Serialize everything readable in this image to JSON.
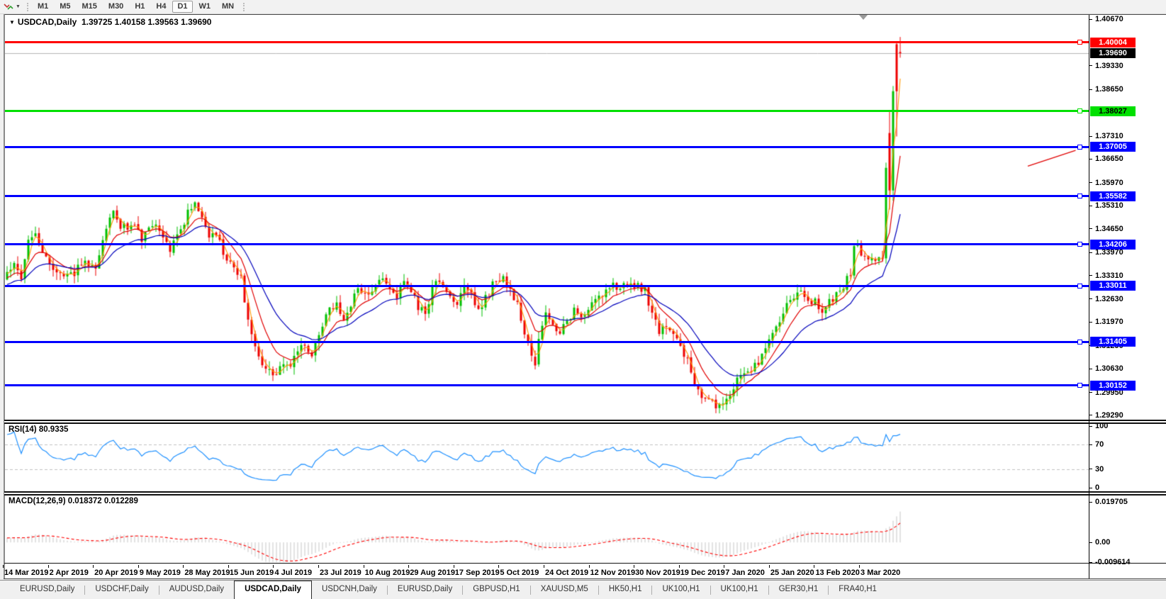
{
  "toolbar": {
    "timeframes": [
      "M1",
      "M5",
      "M15",
      "M30",
      "H1",
      "H4",
      "D1",
      "W1",
      "MN"
    ],
    "active_timeframe": "D1"
  },
  "chart": {
    "symbol_label": "USDCAD,Daily",
    "title_ohlc": "1.39725 1.40158 1.39563 1.39690",
    "price_axis_ticks": [
      "1.40670",
      "1.39330",
      "1.38650",
      "1.37310",
      "1.36650",
      "1.35970",
      "1.35310",
      "1.34650",
      "1.33970",
      "1.33310",
      "1.32630",
      "1.31970",
      "1.31290",
      "1.30630",
      "1.29950",
      "1.29290"
    ],
    "levels": [
      {
        "price_label": "1.40004",
        "price": 1.40004,
        "color": "#FF0000",
        "label_text_color": "#FFFFFF",
        "thickness": 3
      },
      {
        "price_label": "1.38027",
        "price": 1.38027,
        "color": "#00E000",
        "label_text_color": "#000000",
        "thickness": 3
      },
      {
        "price_label": "1.37005",
        "price": 1.37005,
        "color": "#0000FF",
        "label_text_color": "#FFFFFF",
        "thickness": 3
      },
      {
        "price_label": "1.35582",
        "price": 1.35582,
        "color": "#0000FF",
        "label_text_color": "#FFFFFF",
        "thickness": 3
      },
      {
        "price_label": "1.34206",
        "price": 1.34206,
        "color": "#0000FF",
        "label_text_color": "#FFFFFF",
        "thickness": 3
      },
      {
        "price_label": "1.33011",
        "price": 1.33011,
        "color": "#0000FF",
        "label_text_color": "#FFFFFF",
        "thickness": 3
      },
      {
        "price_label": "1.31405",
        "price": 1.31405,
        "color": "#0000FF",
        "label_text_color": "#FFFFFF",
        "thickness": 3
      },
      {
        "price_label": "1.30152",
        "price": 1.30152,
        "color": "#0000FF",
        "label_text_color": "#FFFFFF",
        "thickness": 3
      }
    ],
    "current_price": {
      "label": "1.39690",
      "price": 1.3969,
      "line_color": "#b4b4b4",
      "box_bg": "#000000",
      "box_text": "#FFFFFF"
    }
  },
  "rsi": {
    "label": "RSI(14) 80.9335",
    "period": 14,
    "value": 80.9335,
    "color": "#1E90FF",
    "level_lines": [
      70,
      30
    ],
    "axis": [
      100,
      70,
      30,
      0
    ]
  },
  "macd": {
    "label": "MACD(12,26,9) 0.018372 0.012289",
    "fast": 12,
    "slow": 26,
    "signal_period": 9,
    "value_main": 0.018372,
    "value_signal": 0.012289,
    "hist_color": "#c6c6c6",
    "signal_color": "#FF0000",
    "axis": [
      0.019705,
      0.0,
      -0.009614
    ],
    "axis_labels": [
      "0.019705",
      "0.00",
      "-0.009614"
    ]
  },
  "dates": [
    "14 Mar 2019",
    "2 Apr 2019",
    "20 Apr 2019",
    "9 May 2019",
    "28 May 2019",
    "15 Jun 2019",
    "4 Jul 2019",
    "23 Jul 2019",
    "10 Aug 2019",
    "29 Aug 2019",
    "17 Sep 2019",
    "5 Oct 2019",
    "24 Oct 2019",
    "12 Nov 2019",
    "30 Nov 2019",
    "19 Dec 2019",
    "7 Jan 2020",
    "25 Jan 2020",
    "13 Feb 2020",
    "3 Mar 2020"
  ],
  "tabs": [
    {
      "label": "EURUSD,Daily",
      "active": false
    },
    {
      "label": "USDCHF,Daily",
      "active": false
    },
    {
      "label": "AUDUSD,Daily",
      "active": false
    },
    {
      "label": "USDCAD,Daily",
      "active": true
    },
    {
      "label": "USDCNH,Daily",
      "active": false
    },
    {
      "label": "EURUSD,Daily",
      "active": false
    },
    {
      "label": "GBPUSD,H1",
      "active": false
    },
    {
      "label": "XAUUSD,M5",
      "active": false
    },
    {
      "label": "HK50,H1",
      "active": false
    },
    {
      "label": "UK100,H1",
      "active": false
    },
    {
      "label": "UK100,H1",
      "active": false
    },
    {
      "label": "GER30,H1",
      "active": false
    },
    {
      "label": "FRA40,H1",
      "active": false
    }
  ],
  "chart_data": {
    "type": "candlestick",
    "symbol": "USDCAD",
    "timeframe": "Daily",
    "last_candle": {
      "open": 1.39725,
      "high": 1.40158,
      "low": 1.39563,
      "close": 1.3969
    },
    "up_color": "#00C000",
    "down_color": "#EE0000",
    "candle_count": 253,
    "price_range_visible": [
      1.2929,
      1.4067
    ],
    "close_waypoints": [
      [
        0,
        1.333
      ],
      [
        2,
        1.3356
      ],
      [
        4,
        1.3312
      ],
      [
        6,
        1.3432
      ],
      [
        8,
        1.345
      ],
      [
        10,
        1.3402
      ],
      [
        13,
        1.3356
      ],
      [
        16,
        1.3317
      ],
      [
        19,
        1.3342
      ],
      [
        22,
        1.3376
      ],
      [
        25,
        1.3356
      ],
      [
        27,
        1.3442
      ],
      [
        30,
        1.3514
      ],
      [
        32,
        1.3462
      ],
      [
        35,
        1.348
      ],
      [
        38,
        1.3436
      ],
      [
        41,
        1.3476
      ],
      [
        44,
        1.3441
      ],
      [
        46,
        1.3402
      ],
      [
        48,
        1.3446
      ],
      [
        51,
        1.351
      ],
      [
        53,
        1.3544
      ],
      [
        55,
        1.3492
      ],
      [
        57,
        1.3442
      ],
      [
        59,
        1.3446
      ],
      [
        61,
        1.3401
      ],
      [
        64,
        1.3356
      ],
      [
        66,
        1.3322
      ],
      [
        68,
        1.3192
      ],
      [
        70,
        1.3132
      ],
      [
        72,
        1.3082
      ],
      [
        74,
        1.3052
      ],
      [
        76,
        1.3046
      ],
      [
        78,
        1.3086
      ],
      [
        80,
        1.3066
      ],
      [
        82,
        1.3112
      ],
      [
        84,
        1.3132
      ],
      [
        86,
        1.3102
      ],
      [
        89,
        1.3186
      ],
      [
        91,
        1.3232
      ],
      [
        93,
        1.3246
      ],
      [
        95,
        1.3202
      ],
      [
        97,
        1.3246
      ],
      [
        99,
        1.3286
      ],
      [
        102,
        1.3272
      ],
      [
        104,
        1.3312
      ],
      [
        106,
        1.3332
      ],
      [
        108,
        1.3292
      ],
      [
        110,
        1.3272
      ],
      [
        112,
        1.3302
      ],
      [
        114,
        1.3292
      ],
      [
        116,
        1.3242
      ],
      [
        118,
        1.3222
      ],
      [
        120,
        1.3292
      ],
      [
        122,
        1.3322
      ],
      [
        124,
        1.3272
      ],
      [
        127,
        1.3256
      ],
      [
        129,
        1.3292
      ],
      [
        131,
        1.3272
      ],
      [
        133,
        1.3242
      ],
      [
        135,
        1.3262
      ],
      [
        137,
        1.3302
      ],
      [
        140,
        1.3322
      ],
      [
        142,
        1.3292
      ],
      [
        144,
        1.3242
      ],
      [
        146,
        1.3172
      ],
      [
        148,
        1.3102
      ],
      [
        149,
        1.3082
      ],
      [
        151,
        1.3192
      ],
      [
        152,
        1.3212
      ],
      [
        154,
        1.3182
      ],
      [
        156,
        1.3162
      ],
      [
        158,
        1.3202
      ],
      [
        160,
        1.3232
      ],
      [
        162,
        1.3222
      ],
      [
        165,
        1.3242
      ],
      [
        167,
        1.3262
      ],
      [
        169,
        1.3292
      ],
      [
        171,
        1.3312
      ],
      [
        173,
        1.3292
      ],
      [
        175,
        1.3306
      ],
      [
        178,
        1.3302
      ],
      [
        180,
        1.3292
      ],
      [
        182,
        1.3222
      ],
      [
        184,
        1.3172
      ],
      [
        186,
        1.3182
      ],
      [
        188,
        1.3152
      ],
      [
        190,
        1.3132
      ],
      [
        192,
        1.3082
      ],
      [
        194,
        1.3022
      ],
      [
        196,
        1.2992
      ],
      [
        198,
        1.2966
      ],
      [
        200,
        1.2956
      ],
      [
        202,
        1.2962
      ],
      [
        203,
        1.2976
      ],
      [
        205,
        1.3012
      ],
      [
        207,
        1.3042
      ],
      [
        209,
        1.3058
      ],
      [
        211,
        1.3072
      ],
      [
        213,
        1.3096
      ],
      [
        215,
        1.3142
      ],
      [
        217,
        1.3186
      ],
      [
        219,
        1.3226
      ],
      [
        221,
        1.3262
      ],
      [
        223,
        1.3282
      ],
      [
        225,
        1.3272
      ],
      [
        228,
        1.3252
      ],
      [
        230,
        1.3226
      ],
      [
        232,
        1.3256
      ],
      [
        234,
        1.3276
      ],
      [
        236,
        1.3302
      ],
      [
        238,
        1.3342
      ],
      [
        239,
        1.3422
      ],
      [
        240,
        1.3432
      ],
      [
        241,
        1.3376
      ],
      [
        243,
        1.3382
      ],
      [
        245,
        1.3372
      ],
      [
        246,
        1.3392
      ],
      [
        247,
        1.3376
      ]
    ],
    "final_candles_ohlc": [
      [
        1.338,
        1.3655,
        1.3365,
        1.364
      ],
      [
        1.374,
        1.3805,
        1.352,
        1.3575
      ],
      [
        1.3575,
        1.3875,
        1.3545,
        1.386
      ],
      [
        1.3995,
        1.4003,
        1.373,
        1.386
      ],
      [
        1.39725,
        1.40158,
        1.39563,
        1.3969
      ]
    ],
    "prehistory": {
      "count": 60,
      "from": 1.315,
      "to": 1.333
    },
    "moving_averages": [
      {
        "name": "fast",
        "method": "sma",
        "period": 3,
        "color": "#FF9900",
        "width": 1.1
      },
      {
        "name": "medium",
        "method": "ema",
        "period": 9,
        "color": "#E00000",
        "width": 1.2
      },
      {
        "name": "slow",
        "method": "ema",
        "period": 21,
        "color": "#0000BB",
        "width": 1.2
      }
    ],
    "objects": [
      {
        "type": "trendline",
        "color": "#E00000",
        "width": 1.3,
        "bar1": 288,
        "price1": 1.3645,
        "bar2": 301.5,
        "price2": 1.369
      }
    ]
  }
}
